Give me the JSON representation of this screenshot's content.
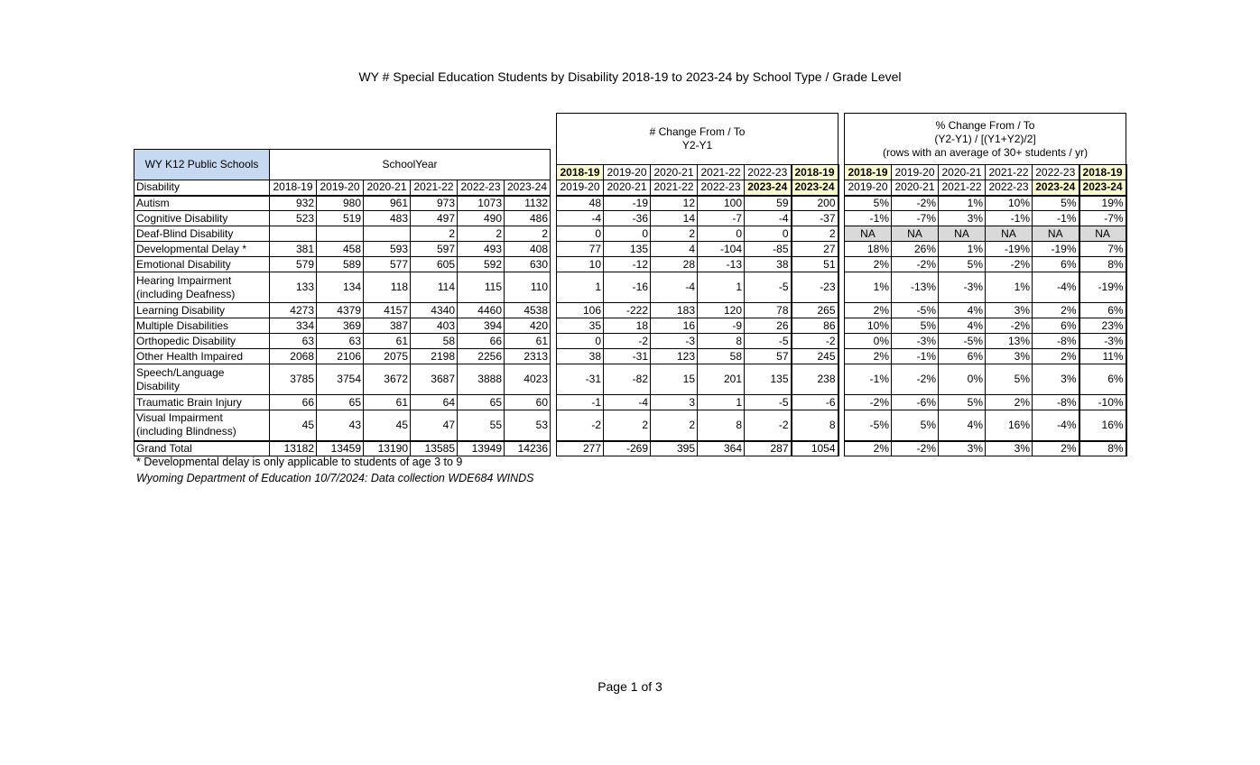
{
  "title": "WY # Special Education Students by Disability 2018-19 to 2023-24 by School Type / Grade Level",
  "counts": {
    "corner": "WY K12 Public Schools",
    "group": "SchoolYear",
    "row_header": "Disability",
    "years": [
      "2018-19",
      "2019-20",
      "2020-21",
      "2021-22",
      "2022-23",
      "2023-24"
    ]
  },
  "change": {
    "title_lines": [
      "# Change From / To",
      "Y2-Y1"
    ],
    "from": [
      "2018-19",
      "2019-20",
      "2020-21",
      "2021-22",
      "2022-23",
      "2018-19"
    ],
    "to": [
      "2019-20",
      "2020-21",
      "2021-22",
      "2022-23",
      "2023-24",
      "2023-24"
    ]
  },
  "pct": {
    "title_lines": [
      "% Change From / To",
      "(Y2-Y1) / [(Y1+Y2)/2]",
      "(rows with an average of 30+ students / yr)"
    ],
    "from": [
      "2018-19",
      "2019-20",
      "2020-21",
      "2021-22",
      "2022-23",
      "2018-19"
    ],
    "to": [
      "2019-20",
      "2020-21",
      "2021-22",
      "2022-23",
      "2023-24",
      "2023-24"
    ]
  },
  "rows": [
    {
      "label": [
        "Autism"
      ],
      "counts": [
        932,
        980,
        961,
        973,
        1073,
        1132
      ],
      "change": [
        48,
        -19,
        12,
        100,
        59,
        200
      ],
      "pct": [
        "5%",
        "-2%",
        "1%",
        "10%",
        "5%",
        "19%"
      ]
    },
    {
      "label": [
        "Cognitive Disability"
      ],
      "counts": [
        523,
        519,
        483,
        497,
        490,
        486
      ],
      "change": [
        -4,
        -36,
        14,
        -7,
        -4,
        -37
      ],
      "pct": [
        "-1%",
        "-7%",
        "3%",
        "-1%",
        "-1%",
        "-7%"
      ]
    },
    {
      "label": [
        "Deaf-Blind Disability"
      ],
      "counts": [
        null,
        null,
        null,
        2,
        2,
        2
      ],
      "change": [
        0,
        0,
        2,
        0,
        0,
        2
      ],
      "pct": [
        "NA",
        "NA",
        "NA",
        "NA",
        "NA",
        "NA"
      ]
    },
    {
      "label": [
        "Developmental Delay *"
      ],
      "counts": [
        381,
        458,
        593,
        597,
        493,
        408
      ],
      "change": [
        77,
        135,
        4,
        -104,
        -85,
        27
      ],
      "pct": [
        "18%",
        "26%",
        "1%",
        "-19%",
        "-19%",
        "7%"
      ]
    },
    {
      "label": [
        "Emotional Disability"
      ],
      "counts": [
        579,
        589,
        577,
        605,
        592,
        630
      ],
      "change": [
        10,
        -12,
        28,
        -13,
        38,
        51
      ],
      "pct": [
        "2%",
        "-2%",
        "5%",
        "-2%",
        "6%",
        "8%"
      ]
    },
    {
      "label": [
        "Hearing Impairment",
        "(including Deafness)"
      ],
      "counts": [
        133,
        134,
        118,
        114,
        115,
        110
      ],
      "change": [
        1,
        -16,
        -4,
        1,
        -5,
        -23
      ],
      "pct": [
        "1%",
        "-13%",
        "-3%",
        "1%",
        "-4%",
        "-19%"
      ]
    },
    {
      "label": [
        "Learning Disability"
      ],
      "counts": [
        4273,
        4379,
        4157,
        4340,
        4460,
        4538
      ],
      "change": [
        106,
        -222,
        183,
        120,
        78,
        265
      ],
      "pct": [
        "2%",
        "-5%",
        "4%",
        "3%",
        "2%",
        "6%"
      ]
    },
    {
      "label": [
        "Multiple Disabilities"
      ],
      "counts": [
        334,
        369,
        387,
        403,
        394,
        420
      ],
      "change": [
        35,
        18,
        16,
        -9,
        26,
        86
      ],
      "pct": [
        "10%",
        "5%",
        "4%",
        "-2%",
        "6%",
        "23%"
      ]
    },
    {
      "label": [
        "Orthopedic Disability"
      ],
      "counts": [
        63,
        63,
        61,
        58,
        66,
        61
      ],
      "change": [
        0,
        -2,
        -3,
        8,
        -5,
        -2
      ],
      "pct": [
        "0%",
        "-3%",
        "-5%",
        "13%",
        "-8%",
        "-3%"
      ]
    },
    {
      "label": [
        "Other Health Impaired"
      ],
      "counts": [
        2068,
        2106,
        2075,
        2198,
        2256,
        2313
      ],
      "change": [
        38,
        -31,
        123,
        58,
        57,
        245
      ],
      "pct": [
        "2%",
        "-1%",
        "6%",
        "3%",
        "2%",
        "11%"
      ]
    },
    {
      "label": [
        "Speech/Language",
        "Disability"
      ],
      "counts": [
        3785,
        3754,
        3672,
        3687,
        3888,
        4023
      ],
      "change": [
        -31,
        -82,
        15,
        201,
        135,
        238
      ],
      "pct": [
        "-1%",
        "-2%",
        "0%",
        "5%",
        "3%",
        "6%"
      ]
    },
    {
      "label": [
        "Traumatic Brain Injury"
      ],
      "counts": [
        66,
        65,
        61,
        64,
        65,
        60
      ],
      "change": [
        -1,
        -4,
        3,
        1,
        -5,
        -6
      ],
      "pct": [
        "-2%",
        "-6%",
        "5%",
        "2%",
        "-8%",
        "-10%"
      ]
    },
    {
      "label": [
        "Visual Impairment",
        "(including Blindness)"
      ],
      "counts": [
        45,
        43,
        45,
        47,
        55,
        53
      ],
      "change": [
        -2,
        2,
        2,
        8,
        -2,
        8
      ],
      "pct": [
        "-5%",
        "5%",
        "4%",
        "16%",
        "-4%",
        "16%"
      ]
    }
  ],
  "total": {
    "label": [
      "Grand Total"
    ],
    "counts": [
      13182,
      13459,
      13190,
      13585,
      13949,
      14236
    ],
    "change": [
      277,
      -269,
      395,
      364,
      287,
      1054
    ],
    "pct": [
      "2%",
      "-2%",
      "3%",
      "3%",
      "2%",
      "8%"
    ]
  },
  "footnotes": [
    "* Developmental delay is only applicable to students of age 3 to 9",
    "Wyoming Department of Education 10/7/2024: Data collection WDE684 WINDS"
  ],
  "page": "Page 1 of 3"
}
